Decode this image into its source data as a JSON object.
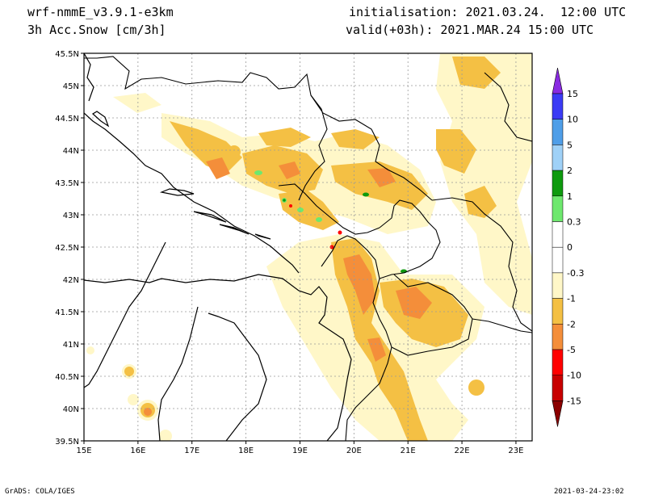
{
  "header": {
    "model": "wrf-nmmE_v3.9.1-e3km",
    "field": "3h Acc.Snow [cm/3h]",
    "init": "initialisation: 2021.03.24.  12:00 UTC",
    "valid": "valid(+03h): 2021.MAR.24 15:00 UTC"
  },
  "map": {
    "lon_labels": [
      "15E",
      "16E",
      "17E",
      "18E",
      "19E",
      "20E",
      "21E",
      "22E",
      "23E"
    ],
    "lat_labels": [
      "45.5N",
      "45N",
      "44.5N",
      "44N",
      "43.5N",
      "43N",
      "42.5N",
      "42N",
      "41.5N",
      "41N",
      "40.5N",
      "40N",
      "39.5N"
    ],
    "lon_range": [
      15,
      23.3
    ],
    "lat_range": [
      39.5,
      45.5
    ],
    "grid": true
  },
  "colorbar": {
    "levels": [
      "15",
      "10",
      "5",
      "2",
      "1",
      "0.3",
      "0",
      "-0.3",
      "-1",
      "-2",
      "-5",
      "-10",
      "-15"
    ],
    "colors": [
      "#8a2be2",
      "#3b3bf5",
      "#4f9ee8",
      "#9fd1f7",
      "#0e9a0e",
      "#6ee86e",
      "#ffffff",
      "#ffffff",
      "#fff7c8",
      "#f4c044",
      "#f48e3a",
      "#ff0000",
      "#c80000",
      "#8b0000"
    ]
  },
  "footer": {
    "left": "GrADS: COLA/IGES",
    "right": "2021-03-24-23:02"
  }
}
